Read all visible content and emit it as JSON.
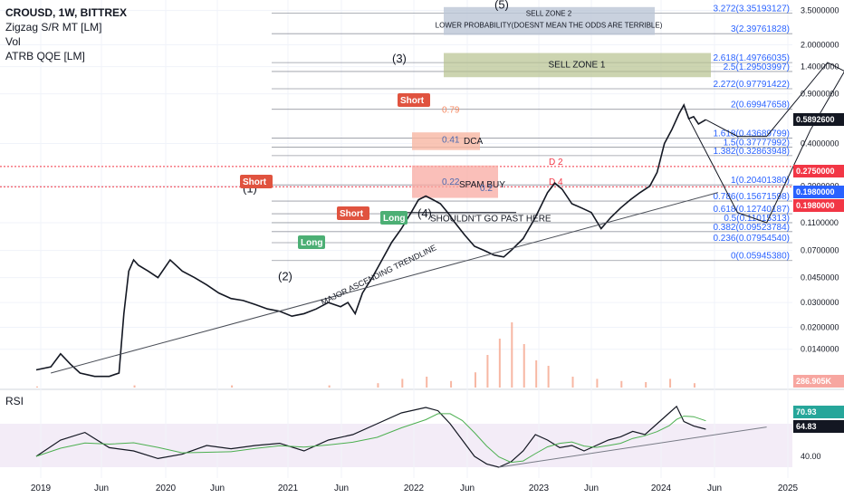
{
  "chart_data": {
    "type": "line",
    "symbol_line": "CROUSD, 1W, BITTREX",
    "indicators": [
      "Zigzag S/R MT [LM]",
      "Vol",
      "ATRB QQE [LM]"
    ],
    "subpane_title": "RSI",
    "x_ticks": [
      "2019",
      "Jun",
      "2020",
      "Jun",
      "2021",
      "Jun",
      "2022",
      "Jun",
      "2023",
      "Jun",
      "2024",
      "Jun",
      "2025"
    ],
    "y_scale": "log",
    "y_ticks": [
      "3.5000000",
      "2.0000000",
      "1.4000000",
      "0.9000000",
      "0.4000000",
      "0.2000000",
      "0.1100000",
      "0.0700000",
      "0.0450000",
      "0.0300000",
      "0.0200000",
      "0.0140000"
    ],
    "rsi_ticks": [
      "40.00"
    ],
    "price_badges": [
      {
        "label": "0.5892600",
        "color": "#131722"
      },
      {
        "label": "0.2750000",
        "color": "#f23645"
      },
      {
        "label": "0.1980000",
        "color": "#2962ff"
      },
      {
        "label": "0.1980000",
        "color": "#f23645"
      },
      {
        "label": "286.905K",
        "color": "#f7a6a0"
      }
    ],
    "rsi_badges": [
      {
        "label": "70.93",
        "color": "#26a69a"
      },
      {
        "label": "64.83",
        "color": "#131722"
      }
    ],
    "fib_levels": [
      {
        "label": "3.272(3.35193127)",
        "value": 3.35193127
      },
      {
        "label": "3(2.39761828)",
        "value": 2.39761828
      },
      {
        "label": "2.618(1.49766035)",
        "value": 1.49766035
      },
      {
        "label": "2.5(1.29503997)",
        "value": 1.29503997
      },
      {
        "label": "2.272(0.97791422)",
        "value": 0.97791422
      },
      {
        "label": "2(0.69947658)",
        "value": 0.69947658
      },
      {
        "label": "1.618(0.43689799)",
        "value": 0.43689799
      },
      {
        "label": "1.5(0.37777992)",
        "value": 0.37777992
      },
      {
        "label": "1.382(0.32863948)",
        "value": 0.32863948
      },
      {
        "label": "1(0.20401380)",
        "value": 0.2040138
      },
      {
        "label": "0.786(0.15671598)",
        "value": 0.15671598
      },
      {
        "label": "0.618(0.12740187)",
        "value": 0.12740187
      },
      {
        "label": "0.5(0.11015313)",
        "value": 0.11015313
      },
      {
        "label": "0.382(0.09523784)",
        "value": 0.09523784
      },
      {
        "label": "0.236(0.07954540)",
        "value": 0.0795454
      },
      {
        "label": "0(0.05945380)",
        "value": 0.0594538
      }
    ],
    "annotations": {
      "sell_zone_1": "SELL ZONE 1",
      "sell_zone_2_title": "SELL ZONE 2",
      "sell_zone_2_note": "LOWER PROBABILITY(DOESNT MEAN THE ODDS ARE TERRIBLE)",
      "dca": "DCA",
      "spam_buy": "SPAM BUY",
      "shouldnt": "SHOULDN'T GO PAST HERE",
      "trendline": "MAJOR ASCENDING TRENDLINE",
      "wave_1": "(1)",
      "wave_2": "(2)",
      "wave_3": "(3)",
      "wave_4": "(4)",
      "wave_5": "(5)",
      "short_1": "Short",
      "short_2": "Short",
      "short_3": "Short",
      "long_1": "Long",
      "long_2": "Long",
      "ratio_079": "0.79",
      "ratio_041": "0.41",
      "ratio_022": "0.22",
      "ratio_small": "0.2",
      "d2": "D 2",
      "d4": "D 4"
    },
    "price_series": [
      [
        0,
        0.01
      ],
      [
        6,
        0.0105
      ],
      [
        10,
        0.013
      ],
      [
        14,
        0.011
      ],
      [
        18,
        0.0095
      ],
      [
        24,
        0.009
      ],
      [
        30,
        0.009
      ],
      [
        34,
        0.0095
      ],
      [
        36,
        0.025
      ],
      [
        38,
        0.05
      ],
      [
        40,
        0.06
      ],
      [
        42,
        0.055
      ],
      [
        46,
        0.05
      ],
      [
        50,
        0.045
      ],
      [
        55,
        0.06
      ],
      [
        60,
        0.05
      ],
      [
        65,
        0.045
      ],
      [
        70,
        0.04
      ],
      [
        75,
        0.035
      ],
      [
        80,
        0.032
      ],
      [
        85,
        0.031
      ],
      [
        90,
        0.029
      ],
      [
        95,
        0.027
      ],
      [
        100,
        0.026
      ],
      [
        105,
        0.024
      ],
      [
        110,
        0.025
      ],
      [
        115,
        0.027
      ],
      [
        120,
        0.03
      ],
      [
        125,
        0.028
      ],
      [
        128,
        0.03
      ],
      [
        131,
        0.025
      ],
      [
        134,
        0.035
      ],
      [
        138,
        0.045
      ],
      [
        142,
        0.06
      ],
      [
        146,
        0.08
      ],
      [
        150,
        0.1
      ],
      [
        154,
        0.13
      ],
      [
        157,
        0.16
      ],
      [
        160,
        0.17
      ],
      [
        163,
        0.16
      ],
      [
        166,
        0.15
      ],
      [
        169,
        0.13
      ],
      [
        172,
        0.11
      ],
      [
        176,
        0.09
      ],
      [
        180,
        0.075
      ],
      [
        184,
        0.07
      ],
      [
        188,
        0.065
      ],
      [
        192,
        0.063
      ],
      [
        195,
        0.07
      ],
      [
        200,
        0.085
      ],
      [
        205,
        0.12
      ],
      [
        210,
        0.18
      ],
      [
        213,
        0.21
      ],
      [
        216,
        0.19
      ],
      [
        220,
        0.15
      ],
      [
        224,
        0.14
      ],
      [
        228,
        0.13
      ],
      [
        232,
        0.1
      ],
      [
        236,
        0.12
      ],
      [
        240,
        0.14
      ],
      [
        244,
        0.16
      ],
      [
        248,
        0.18
      ],
      [
        252,
        0.2
      ],
      [
        255,
        0.25
      ],
      [
        258,
        0.4
      ],
      [
        261,
        0.5
      ],
      [
        264,
        0.65
      ],
      [
        266,
        0.75
      ],
      [
        268,
        0.6
      ],
      [
        270,
        0.62
      ],
      [
        272,
        0.55
      ],
      [
        275,
        0.59
      ]
    ],
    "rsi_series": [
      [
        0,
        40
      ],
      [
        10,
        55
      ],
      [
        20,
        62
      ],
      [
        30,
        48
      ],
      [
        40,
        45
      ],
      [
        50,
        38
      ],
      [
        60,
        42
      ],
      [
        70,
        50
      ],
      [
        80,
        47
      ],
      [
        90,
        50
      ],
      [
        100,
        52
      ],
      [
        110,
        45
      ],
      [
        120,
        55
      ],
      [
        130,
        60
      ],
      [
        140,
        70
      ],
      [
        150,
        80
      ],
      [
        160,
        85
      ],
      [
        165,
        82
      ],
      [
        170,
        70
      ],
      [
        175,
        55
      ],
      [
        180,
        40
      ],
      [
        185,
        33
      ],
      [
        190,
        30
      ],
      [
        195,
        35
      ],
      [
        200,
        45
      ],
      [
        205,
        60
      ],
      [
        210,
        55
      ],
      [
        215,
        48
      ],
      [
        220,
        50
      ],
      [
        225,
        45
      ],
      [
        230,
        50
      ],
      [
        235,
        55
      ],
      [
        240,
        58
      ],
      [
        245,
        63
      ],
      [
        250,
        60
      ],
      [
        255,
        70
      ],
      [
        260,
        80
      ],
      [
        263,
        86
      ],
      [
        266,
        72
      ],
      [
        270,
        68
      ],
      [
        275,
        65
      ]
    ],
    "volume_series": [
      [
        0,
        1
      ],
      [
        40,
        2
      ],
      [
        80,
        2
      ],
      [
        120,
        2
      ],
      [
        140,
        4
      ],
      [
        150,
        8
      ],
      [
        160,
        10
      ],
      [
        170,
        6
      ],
      [
        180,
        14
      ],
      [
        185,
        30
      ],
      [
        190,
        45
      ],
      [
        195,
        60
      ],
      [
        200,
        40
      ],
      [
        205,
        25
      ],
      [
        210,
        20
      ],
      [
        220,
        10
      ],
      [
        230,
        8
      ],
      [
        240,
        6
      ],
      [
        250,
        5
      ],
      [
        260,
        8
      ],
      [
        270,
        4
      ]
    ],
    "trendline_points": [
      [
        6,
        0.0095
      ],
      [
        280,
        0.18
      ]
    ],
    "rsi_trendline_points": [
      [
        190,
        30
      ],
      [
        300,
        67
      ]
    ],
    "forecast_path": [
      [
        275,
        0.59
      ],
      [
        288,
        0.45
      ],
      [
        300,
        0.45
      ],
      [
        312,
        0.8
      ],
      [
        325,
        1.5
      ],
      [
        332,
        1.3
      ],
      [
        338,
        1.7
      ],
      [
        344,
        1.3
      ],
      [
        352,
        4.0
      ]
    ],
    "forecast_alt_path": [
      [
        268,
        0.6
      ],
      [
        278,
        0.28
      ],
      [
        288,
        0.13
      ],
      [
        300,
        0.11
      ],
      [
        318,
        0.5
      ],
      [
        332,
        1.3
      ]
    ],
    "x_min": 0,
    "x_max": 500,
    "y_min": 0.0075,
    "y_max": 3.8
  }
}
